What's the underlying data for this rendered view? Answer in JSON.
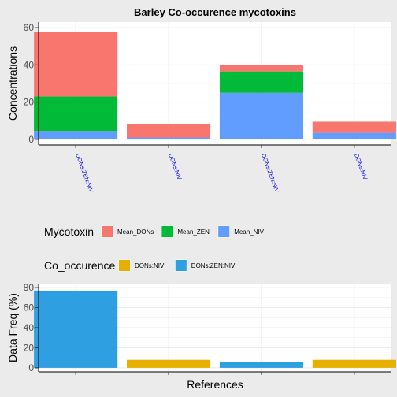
{
  "colors": {
    "Mean_DONs": "#F8766D",
    "Mean_ZEN": "#00BA38",
    "Mean_NIV": "#619CFF",
    "DONs:NIV": "#E6B000",
    "DONs:ZEN:NIV": "#2E9FE0",
    "panel_bg": "#FFFFFF",
    "page_bg": "#EBEBEB",
    "grid": "#EBEBEB",
    "x_tick_label": "#0000FF"
  },
  "chart_data": [
    {
      "type": "bar",
      "stacked": true,
      "title": "Barley Co-occurence mycotoxins",
      "ylabel": "Concentrations",
      "xlabel": "",
      "ylim": [
        0,
        60
      ],
      "yticks": [
        0,
        20,
        40,
        60
      ],
      "grid": true,
      "categories": [
        "DONs:ZEN:NIV",
        "DONs:NIV",
        "DONs:ZEN:NIV",
        "DONs:NIV"
      ],
      "series": [
        {
          "name": "Mean_NIV",
          "values": [
            4.5,
            1.0,
            25.0,
            3.5
          ]
        },
        {
          "name": "Mean_ZEN",
          "values": [
            18.5,
            0,
            11.5,
            0
          ]
        },
        {
          "name": "Mean_DONs",
          "values": [
            34.5,
            7.0,
            3.5,
            6.0
          ]
        }
      ]
    },
    {
      "type": "bar",
      "ylabel": "Data Freq (%)",
      "xlabel": "References",
      "ylim": [
        0,
        80
      ],
      "yticks": [
        0,
        20,
        40,
        60,
        80
      ],
      "grid": true,
      "tick_labels_shown": false,
      "categories": [
        "DONs:ZEN:NIV",
        "DONs:NIV",
        "DONs:ZEN:NIV",
        "DONs:NIV"
      ],
      "values": [
        77,
        8,
        6,
        8
      ]
    }
  ],
  "legends": [
    {
      "title": "Mycotoxin",
      "items": [
        "Mean_DONs",
        "Mean_ZEN",
        "Mean_NIV"
      ]
    },
    {
      "title": "Co_occurence",
      "items": [
        "DONs:NIV",
        "DONs:ZEN:NIV"
      ]
    }
  ]
}
